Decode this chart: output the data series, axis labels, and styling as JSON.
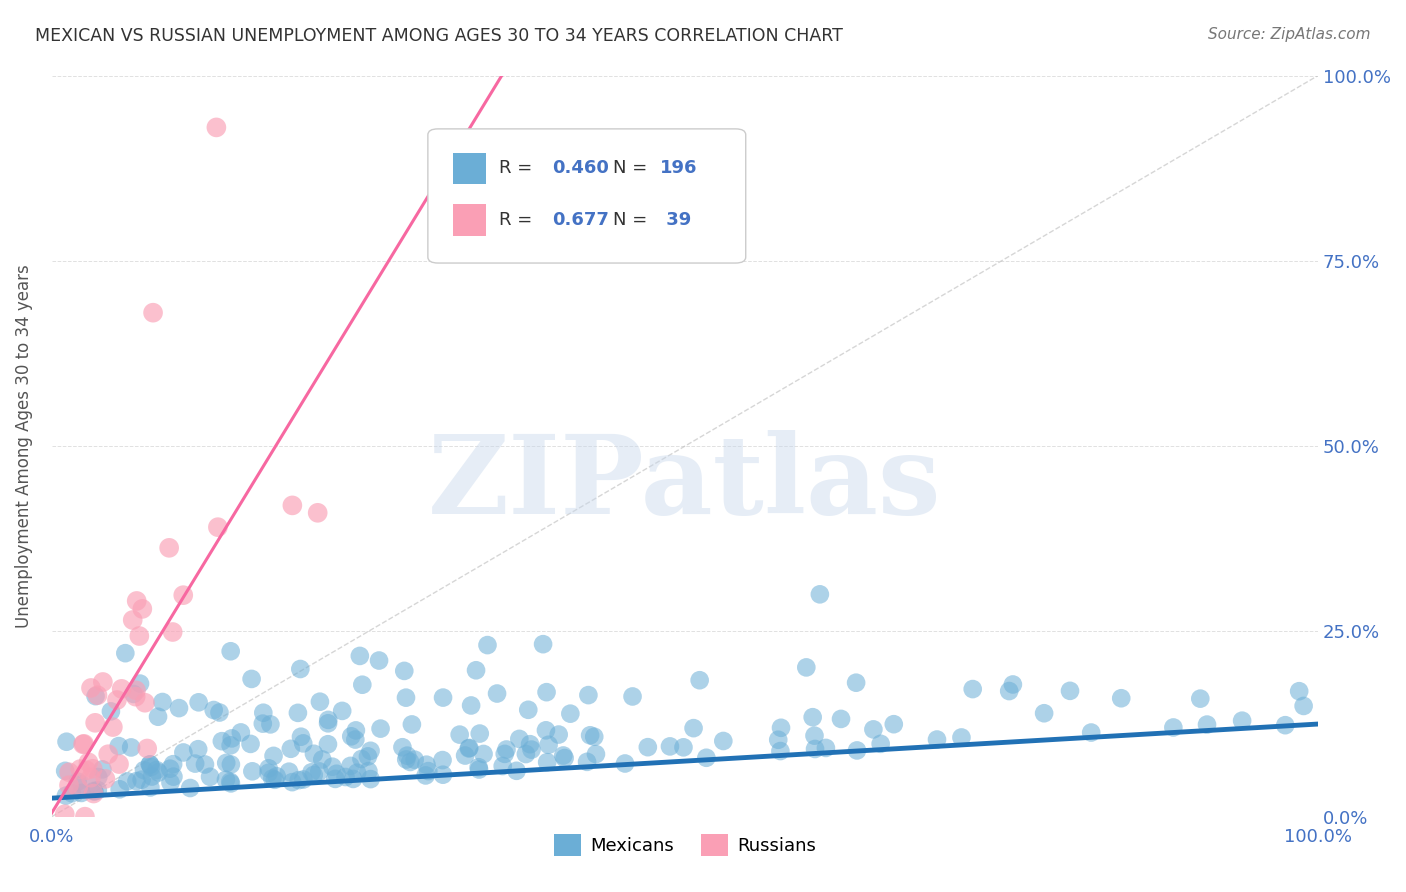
{
  "title": "MEXICAN VS RUSSIAN UNEMPLOYMENT AMONG AGES 30 TO 34 YEARS CORRELATION CHART",
  "source": "Source: ZipAtlas.com",
  "xlabel": "",
  "ylabel": "Unemployment Among Ages 30 to 34 years",
  "xlim": [
    0,
    1
  ],
  "ylim": [
    0,
    1
  ],
  "xtick_labels": [
    "0.0%",
    "100.0%"
  ],
  "ytick_labels": [
    "0.0%",
    "25.0%",
    "50.0%",
    "75.0%",
    "100.0%"
  ],
  "yticks": [
    0,
    0.25,
    0.5,
    0.75,
    1.0
  ],
  "mexican_color": "#6baed6",
  "russian_color": "#fa9fb5",
  "mexican_line_color": "#2171b5",
  "russian_line_color": "#f768a1",
  "R_mexican": 0.46,
  "N_mexican": 196,
  "R_russian": 0.677,
  "N_russian": 39,
  "legend_labels": [
    "Mexicans",
    "Russians"
  ],
  "watermark": "ZIPatlas",
  "background_color": "#ffffff",
  "grid_color": "#cccccc",
  "title_color": "#333333",
  "axis_label_color": "#555555",
  "tick_color": "#4472c4",
  "source_color": "#777777",
  "slope_mex": 0.1,
  "intercept_mex": 0.025,
  "slope_rus": 2.8,
  "intercept_rus": 0.005
}
